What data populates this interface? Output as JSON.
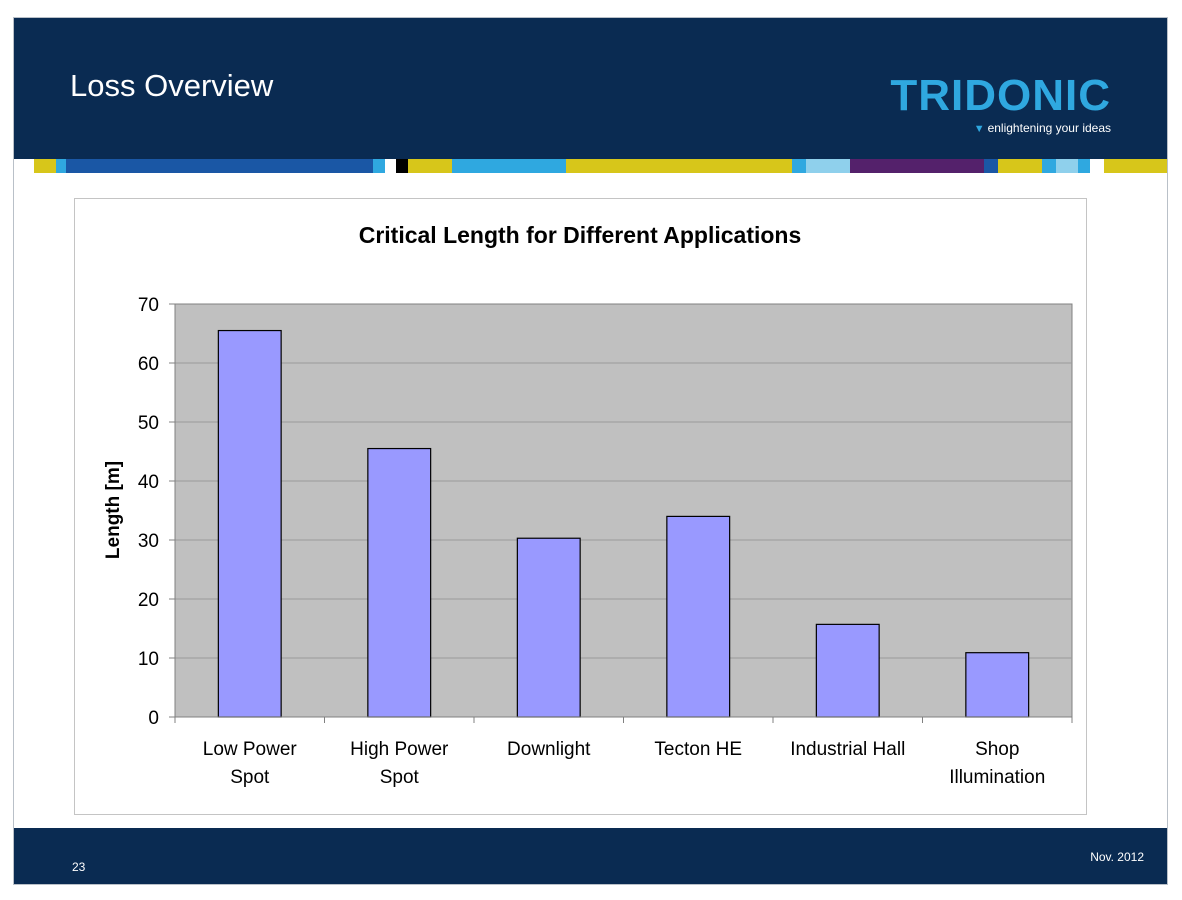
{
  "slide": {
    "title": "Loss Overview",
    "logo": {
      "name": "TRIDONIC",
      "tagline": "enlightening your ideas"
    },
    "page_number": "23",
    "date": "Nov. 2012"
  },
  "colors": {
    "header_bg": "#0a2b52",
    "logo_accent": "#2fa8e0",
    "bar_fill": "#9999ff",
    "plot_bg": "#c0c0c0",
    "stripe": [
      "#d7c61a",
      "#2fa8e0",
      "#1a57a5",
      "#000000",
      "#54216b",
      "#8fd0ec"
    ]
  },
  "chart_data": {
    "type": "bar",
    "title": "Critical Length for Different Applications",
    "xlabel": "",
    "ylabel": "Length [m]",
    "ylim": [
      0,
      70
    ],
    "yticks": [
      0,
      10,
      20,
      30,
      40,
      50,
      60,
      70
    ],
    "grid": true,
    "categories": [
      [
        "Low Power",
        "Spot"
      ],
      [
        "High Power",
        "Spot"
      ],
      [
        "Downlight"
      ],
      [
        "Tecton HE"
      ],
      [
        "Industrial Hall"
      ],
      [
        "Shop",
        "Illumination"
      ]
    ],
    "values": [
      65.5,
      45.5,
      30.3,
      34,
      15.7,
      10.9
    ]
  }
}
